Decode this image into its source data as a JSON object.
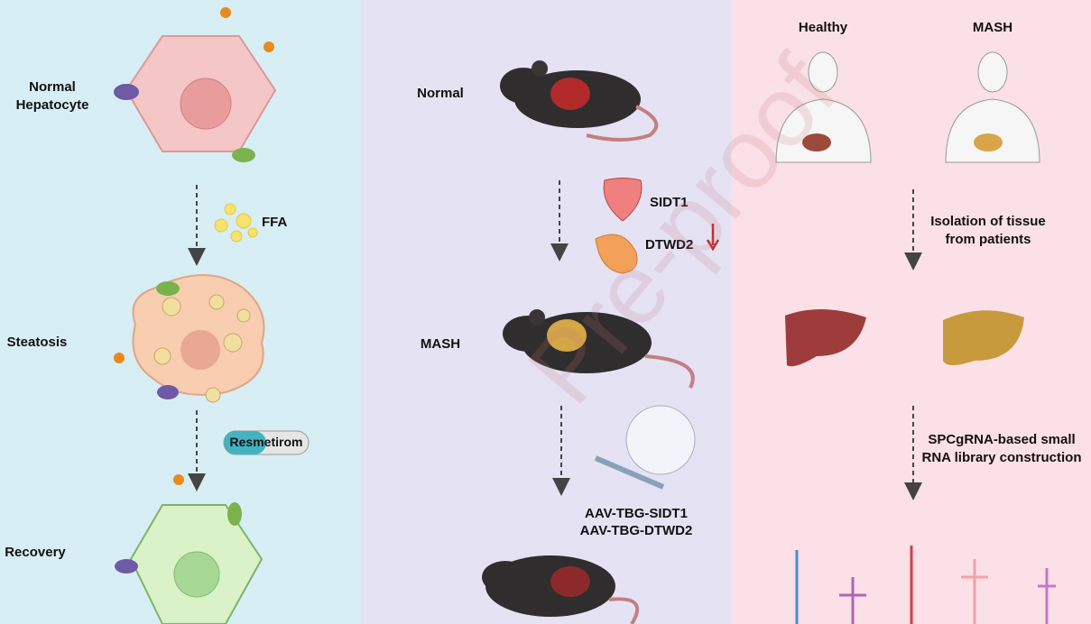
{
  "left_panel": {
    "stages": [
      "Normal Hepatocyte",
      "Steatosis",
      "Recovery"
    ],
    "treatments": [
      "FFA",
      "Resmetirom"
    ]
  },
  "middle_panel": {
    "stages": [
      "Normal",
      "MASH"
    ],
    "genes": [
      "SIDT1",
      "DTWD2"
    ],
    "vectors": [
      "AAV-TBG-SIDT1",
      "AAV-TBG-DTWD2"
    ]
  },
  "right_panel": {
    "groups": [
      "Healthy",
      "MASH"
    ],
    "steps": [
      "Isolation of tissue from patients",
      "SPCgRNA-based small RNA library construction"
    ]
  },
  "watermark": "Pre-proof"
}
